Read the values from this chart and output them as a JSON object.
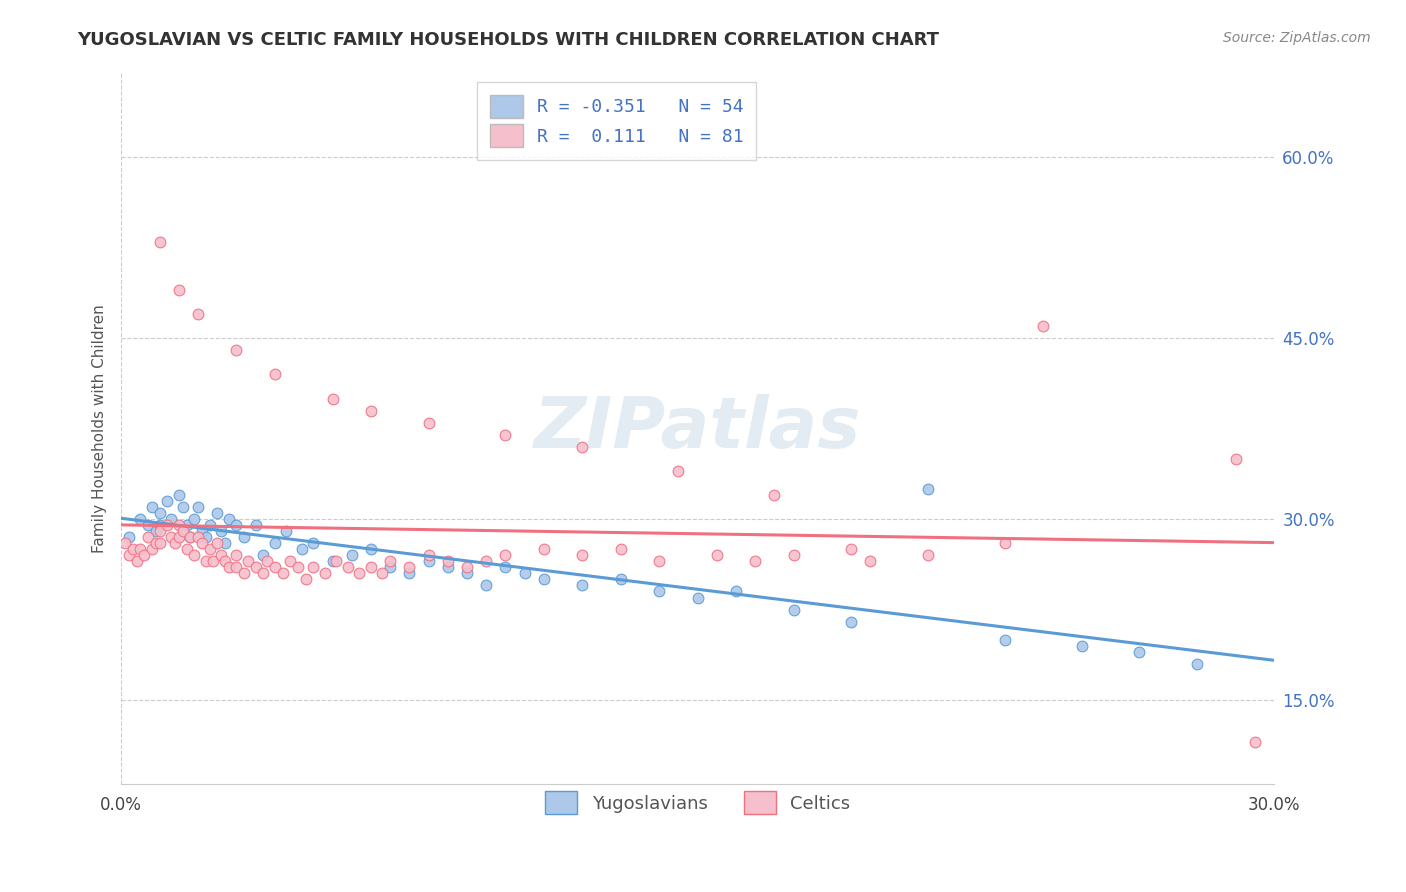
{
  "title": "YUGOSLAVIAN VS CELTIC FAMILY HOUSEHOLDS WITH CHILDREN CORRELATION CHART",
  "source": "Source: ZipAtlas.com",
  "ylabel_label": "Family Households with Children",
  "x_min": 0.0,
  "x_max": 0.3,
  "y_min": 0.08,
  "y_max": 0.67,
  "y_ticks_right": [
    0.15,
    0.3,
    0.45,
    0.6
  ],
  "y_tick_labels_right": [
    "15.0%",
    "30.0%",
    "45.0%",
    "60.0%"
  ],
  "legend_label1": "R = -0.351   N = 54",
  "legend_label2": "R =  0.111   N = 81",
  "legend_entry1_color": "#adc8e8",
  "legend_entry2_color": "#f5bfcc",
  "scatter_color_yugo": "#adc8e8",
  "scatter_color_celtic": "#f5bfcc",
  "line_color_yugo": "#5b9bd5",
  "line_color_celtic": "#f07080",
  "watermark": "ZIPatlas",
  "bottom_legend_yugo": "Yugoslavians",
  "bottom_legend_celtic": "Celtics",
  "yugo_x": [
    0.002,
    0.005,
    0.007,
    0.008,
    0.009,
    0.01,
    0.01,
    0.012,
    0.013,
    0.015,
    0.016,
    0.017,
    0.018,
    0.019,
    0.02,
    0.021,
    0.022,
    0.023,
    0.025,
    0.026,
    0.027,
    0.028,
    0.03,
    0.032,
    0.035,
    0.037,
    0.04,
    0.043,
    0.047,
    0.05,
    0.055,
    0.06,
    0.065,
    0.07,
    0.075,
    0.08,
    0.085,
    0.09,
    0.095,
    0.1,
    0.105,
    0.11,
    0.12,
    0.13,
    0.14,
    0.15,
    0.16,
    0.175,
    0.19,
    0.21,
    0.23,
    0.25,
    0.265,
    0.28
  ],
  "yugo_y": [
    0.285,
    0.3,
    0.295,
    0.31,
    0.29,
    0.305,
    0.295,
    0.315,
    0.3,
    0.32,
    0.31,
    0.295,
    0.285,
    0.3,
    0.31,
    0.29,
    0.285,
    0.295,
    0.305,
    0.29,
    0.28,
    0.3,
    0.295,
    0.285,
    0.295,
    0.27,
    0.28,
    0.29,
    0.275,
    0.28,
    0.265,
    0.27,
    0.275,
    0.26,
    0.255,
    0.265,
    0.26,
    0.255,
    0.245,
    0.26,
    0.255,
    0.25,
    0.245,
    0.25,
    0.24,
    0.235,
    0.24,
    0.225,
    0.215,
    0.325,
    0.2,
    0.195,
    0.19,
    0.18
  ],
  "celtic_x": [
    0.001,
    0.002,
    0.003,
    0.004,
    0.005,
    0.006,
    0.007,
    0.008,
    0.009,
    0.01,
    0.01,
    0.012,
    0.013,
    0.014,
    0.015,
    0.015,
    0.016,
    0.017,
    0.018,
    0.019,
    0.02,
    0.021,
    0.022,
    0.023,
    0.024,
    0.025,
    0.026,
    0.027,
    0.028,
    0.03,
    0.03,
    0.032,
    0.033,
    0.035,
    0.037,
    0.038,
    0.04,
    0.042,
    0.044,
    0.046,
    0.048,
    0.05,
    0.053,
    0.056,
    0.059,
    0.062,
    0.065,
    0.068,
    0.07,
    0.075,
    0.08,
    0.085,
    0.09,
    0.095,
    0.1,
    0.11,
    0.12,
    0.13,
    0.14,
    0.155,
    0.165,
    0.175,
    0.19,
    0.195,
    0.21,
    0.23,
    0.01,
    0.015,
    0.02,
    0.03,
    0.04,
    0.055,
    0.065,
    0.08,
    0.1,
    0.12,
    0.145,
    0.17,
    0.24,
    0.29,
    0.295
  ],
  "celtic_y": [
    0.28,
    0.27,
    0.275,
    0.265,
    0.275,
    0.27,
    0.285,
    0.275,
    0.28,
    0.29,
    0.28,
    0.295,
    0.285,
    0.28,
    0.295,
    0.285,
    0.29,
    0.275,
    0.285,
    0.27,
    0.285,
    0.28,
    0.265,
    0.275,
    0.265,
    0.28,
    0.27,
    0.265,
    0.26,
    0.27,
    0.26,
    0.255,
    0.265,
    0.26,
    0.255,
    0.265,
    0.26,
    0.255,
    0.265,
    0.26,
    0.25,
    0.26,
    0.255,
    0.265,
    0.26,
    0.255,
    0.26,
    0.255,
    0.265,
    0.26,
    0.27,
    0.265,
    0.26,
    0.265,
    0.27,
    0.275,
    0.27,
    0.275,
    0.265,
    0.27,
    0.265,
    0.27,
    0.275,
    0.265,
    0.27,
    0.28,
    0.53,
    0.49,
    0.47,
    0.44,
    0.42,
    0.4,
    0.39,
    0.38,
    0.37,
    0.36,
    0.34,
    0.32,
    0.46,
    0.35,
    0.115
  ]
}
